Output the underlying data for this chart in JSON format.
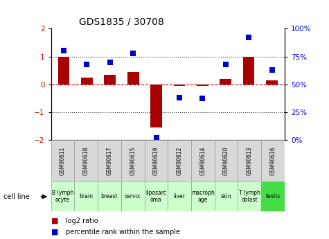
{
  "title": "GDS1835 / 30708",
  "samples": [
    "GSM90611",
    "GSM90618",
    "GSM90617",
    "GSM90615",
    "GSM90619",
    "GSM90612",
    "GSM90614",
    "GSM90620",
    "GSM90613",
    "GSM90616"
  ],
  "cell_lines": [
    "B lymph\nocyte",
    "brain",
    "breast",
    "cervix",
    "liposarc\noma",
    "liver",
    "macroph\nage",
    "skin",
    "T lymph\noblast",
    "testis"
  ],
  "cell_line_colors": [
    "#ccffcc",
    "#ccffcc",
    "#ccffcc",
    "#ccffcc",
    "#ccffcc",
    "#ccffcc",
    "#ccffcc",
    "#ccffcc",
    "#ccffcc",
    "#44dd44"
  ],
  "log2_ratio": [
    1.0,
    0.25,
    0.35,
    0.45,
    -1.55,
    -0.07,
    -0.07,
    0.2,
    1.0,
    0.15
  ],
  "percentile_rank": [
    80,
    68,
    70,
    78,
    2,
    38,
    37,
    68,
    92,
    63
  ],
  "bar_color": "#aa0000",
  "dot_color": "#0000cc",
  "ylim_left": [
    -2,
    2
  ],
  "ylim_right": [
    0,
    100
  ],
  "yticks_left": [
    -2,
    -1,
    0,
    1,
    2
  ],
  "yticks_right": [
    0,
    25,
    50,
    75,
    100
  ],
  "yticklabels_right": [
    "0%",
    "25%",
    "50%",
    "75%",
    "100%"
  ],
  "bar_width": 0.5,
  "dot_size": 40,
  "legend_items": [
    "log2 ratio",
    "percentile rank within the sample"
  ],
  "legend_colors": [
    "#aa0000",
    "#0000cc"
  ],
  "cell_line_label": "cell line"
}
